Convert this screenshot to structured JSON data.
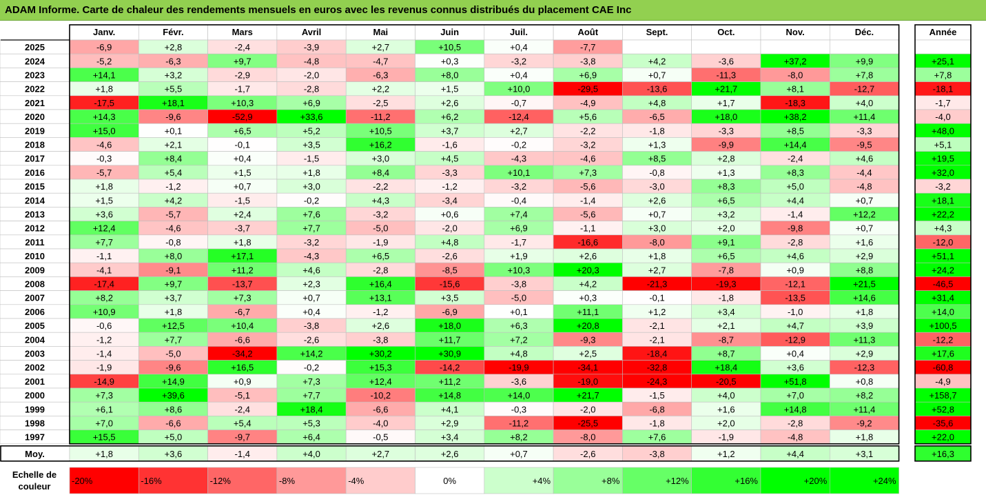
{
  "title": "ADAM Informe. Carte de chaleur des rendements mensuels en euros avec les revenus connus distribués du placement CAE Inc",
  "year_header": "Année",
  "avg_label": "Moy.",
  "scale_label_line1": "Echelle de",
  "scale_label_line2": "couleur",
  "chart_data": {
    "type": "heatmap",
    "title": "ADAM Informe. Carte de chaleur des rendements mensuels en euros avec les revenus connus distribués du placement CAE Inc",
    "months": [
      "Janv.",
      "Févr.",
      "Mars",
      "Avril",
      "Mai",
      "Juin",
      "Juil.",
      "Août",
      "Sept.",
      "Oct.",
      "Nov.",
      "Déc."
    ],
    "rows": [
      {
        "year": "2025",
        "values": [
          -6.9,
          2.8,
          -2.4,
          -3.9,
          2.7,
          10.5,
          0.4,
          -7.7,
          null,
          null,
          null,
          null
        ],
        "annual": null
      },
      {
        "year": "2024",
        "values": [
          -5.2,
          -6.3,
          9.7,
          -4.8,
          -4.7,
          0.3,
          -3.2,
          -3.8,
          4.2,
          -3.6,
          37.2,
          9.9
        ],
        "annual": 25.1
      },
      {
        "year": "2023",
        "values": [
          14.1,
          3.2,
          -2.9,
          -2.0,
          -6.3,
          8.0,
          0.4,
          6.9,
          0.7,
          -11.3,
          -8.0,
          7.8
        ],
        "annual": 7.8
      },
      {
        "year": "2022",
        "values": [
          1.8,
          5.5,
          -1.7,
          -2.8,
          2.2,
          1.5,
          10.0,
          -29.5,
          -13.6,
          21.7,
          8.1,
          -12.7
        ],
        "annual": -18.1
      },
      {
        "year": "2021",
        "values": [
          -17.5,
          18.1,
          10.3,
          6.9,
          -2.5,
          2.6,
          -0.7,
          -4.9,
          4.8,
          1.7,
          -18.3,
          4.0
        ],
        "annual": -1.7
      },
      {
        "year": "2020",
        "values": [
          14.3,
          -9.6,
          -52.9,
          33.6,
          -11.2,
          6.2,
          -12.4,
          5.6,
          -6.5,
          18.0,
          38.2,
          11.4
        ],
        "annual": -4.0
      },
      {
        "year": "2019",
        "values": [
          15.0,
          0.1,
          6.5,
          5.2,
          10.5,
          3.7,
          2.7,
          -2.2,
          -1.8,
          -3.3,
          8.5,
          -3.3
        ],
        "annual": 48.0
      },
      {
        "year": "2018",
        "values": [
          -4.6,
          2.1,
          -0.1,
          3.5,
          16.2,
          -1.6,
          -0.2,
          -3.2,
          1.3,
          -9.9,
          14.4,
          -9.5
        ],
        "annual": 5.1
      },
      {
        "year": "2017",
        "values": [
          -0.3,
          8.4,
          0.4,
          -1.5,
          3.0,
          4.5,
          -4.3,
          -4.6,
          8.5,
          2.8,
          -2.4,
          4.6
        ],
        "annual": 19.5
      },
      {
        "year": "2016",
        "values": [
          -5.7,
          5.4,
          1.5,
          1.8,
          8.4,
          -3.3,
          10.1,
          7.3,
          -0.8,
          1.3,
          8.3,
          -4.4
        ],
        "annual": 32.0
      },
      {
        "year": "2015",
        "values": [
          1.8,
          -1.2,
          0.7,
          3.0,
          -2.2,
          -1.2,
          -3.2,
          -5.6,
          -3.0,
          8.3,
          5.0,
          -4.8
        ],
        "annual": -3.2
      },
      {
        "year": "2014",
        "values": [
          1.5,
          4.2,
          -1.5,
          -0.2,
          4.3,
          -3.4,
          -0.4,
          -1.4,
          2.6,
          6.5,
          4.4,
          0.7
        ],
        "annual": 18.1
      },
      {
        "year": "2013",
        "values": [
          3.6,
          -5.7,
          2.4,
          7.6,
          -3.2,
          0.6,
          7.4,
          -5.6,
          0.7,
          3.2,
          -1.4,
          12.2
        ],
        "annual": 22.2
      },
      {
        "year": "2012",
        "values": [
          12.4,
          -4.6,
          -3.7,
          7.7,
          -5.0,
          -2.0,
          6.9,
          -1.1,
          3.0,
          2.0,
          -9.8,
          0.7
        ],
        "annual": 4.3
      },
      {
        "year": "2011",
        "values": [
          7.7,
          -0.8,
          1.8,
          -3.2,
          -1.9,
          4.8,
          -1.7,
          -16.6,
          -8.0,
          9.1,
          -2.8,
          1.6
        ],
        "annual": -12.0
      },
      {
        "year": "2010",
        "values": [
          -1.1,
          8.0,
          17.1,
          -4.3,
          6.5,
          -2.6,
          1.9,
          2.6,
          1.8,
          6.5,
          4.6,
          2.9
        ],
        "annual": 51.1
      },
      {
        "year": "2009",
        "values": [
          -4.1,
          -9.1,
          11.2,
          4.6,
          -2.8,
          -8.5,
          10.3,
          20.3,
          2.7,
          -7.8,
          0.9,
          8.8
        ],
        "annual": 24.2
      },
      {
        "year": "2008",
        "values": [
          -17.4,
          9.7,
          -13.7,
          2.3,
          16.4,
          -15.6,
          -3.8,
          4.2,
          -21.3,
          -19.3,
          -12.1,
          21.5
        ],
        "annual": -46.5
      },
      {
        "year": "2007",
        "values": [
          8.2,
          3.7,
          7.3,
          0.7,
          13.1,
          3.5,
          -5.0,
          0.3,
          -0.1,
          -1.8,
          -13.5,
          14.6
        ],
        "annual": 31.4
      },
      {
        "year": "2006",
        "values": [
          10.9,
          1.8,
          -6.7,
          0.4,
          -1.2,
          -6.9,
          0.1,
          11.1,
          1.2,
          3.4,
          -1.0,
          1.8
        ],
        "annual": 14.0
      },
      {
        "year": "2005",
        "values": [
          -0.6,
          12.5,
          10.4,
          -3.8,
          2.6,
          18.0,
          6.3,
          20.8,
          -2.1,
          2.1,
          4.7,
          3.9
        ],
        "annual": 100.5
      },
      {
        "year": "2004",
        "values": [
          -1.2,
          7.7,
          -6.6,
          -2.6,
          -3.8,
          11.7,
          7.2,
          -9.3,
          -2.1,
          -8.7,
          -12.9,
          11.3
        ],
        "annual": -12.2
      },
      {
        "year": "2003",
        "values": [
          -1.4,
          -5.0,
          -34.2,
          14.2,
          30.2,
          30.9,
          4.8,
          2.5,
          -18.4,
          8.7,
          0.4,
          2.9
        ],
        "annual": 17.6
      },
      {
        "year": "2002",
        "values": [
          -1.9,
          -9.6,
          16.5,
          -0.2,
          15.3,
          -14.2,
          -19.9,
          -34.1,
          -32.8,
          18.4,
          3.6,
          -12.3
        ],
        "annual": -60.8
      },
      {
        "year": "2001",
        "values": [
          -14.9,
          14.9,
          0.9,
          7.3,
          12.4,
          11.2,
          -3.6,
          -19.0,
          -24.3,
          -20.5,
          51.8,
          0.8
        ],
        "annual": -4.9
      },
      {
        "year": "2000",
        "values": [
          7.3,
          39.6,
          -5.1,
          7.7,
          -10.2,
          14.8,
          14.0,
          21.7,
          -1.5,
          4.0,
          7.0,
          8.2
        ],
        "annual": 158.7
      },
      {
        "year": "1999",
        "values": [
          6.1,
          8.6,
          -2.4,
          18.4,
          -6.6,
          4.1,
          -0.3,
          -2.0,
          -6.8,
          1.6,
          14.8,
          11.4
        ],
        "annual": 52.8
      },
      {
        "year": "1998",
        "values": [
          7.0,
          -6.6,
          5.4,
          5.3,
          -4.0,
          2.9,
          -11.2,
          -25.5,
          -1.8,
          2.0,
          -2.8,
          -9.2
        ],
        "annual": -35.6
      },
      {
        "year": "1997",
        "values": [
          15.5,
          5.0,
          -9.7,
          6.4,
          -0.5,
          3.4,
          8.2,
          -8.0,
          7.6,
          -1.9,
          -4.8,
          1.8
        ],
        "annual": 22.0
      }
    ],
    "average": {
      "values": [
        1.8,
        3.6,
        -1.4,
        4.0,
        2.7,
        2.6,
        0.7,
        -2.6,
        -3.8,
        1.2,
        4.4,
        3.1
      ],
      "annual": 16.3
    },
    "color_scale": [
      {
        "label": "-20%",
        "value": -20
      },
      {
        "label": "-16%",
        "value": -16
      },
      {
        "label": "-12%",
        "value": -12
      },
      {
        "label": "-8%",
        "value": -8
      },
      {
        "label": "-4%",
        "value": -4
      },
      {
        "label": "0%",
        "value": 0
      },
      {
        "label": "+4%",
        "value": 4
      },
      {
        "label": "+8%",
        "value": 8
      },
      {
        "label": "+12%",
        "value": 12
      },
      {
        "label": "+16%",
        "value": 16
      },
      {
        "label": "+20%",
        "value": 20
      },
      {
        "label": "+24%",
        "value": 24
      }
    ],
    "colors": {
      "negative_max": "#ff0000",
      "neutral": "#ffffff",
      "positive_max": "#00ff00",
      "title_bar": "#92d050"
    }
  }
}
